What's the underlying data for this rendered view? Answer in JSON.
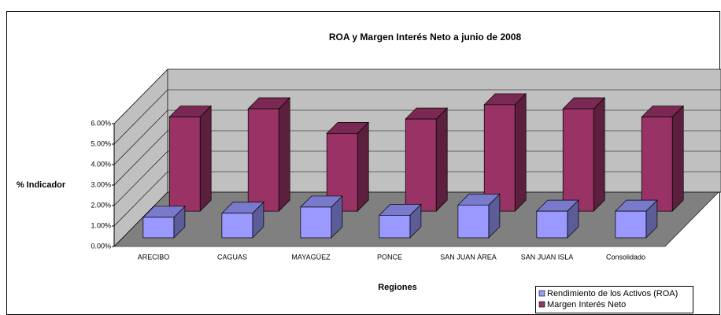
{
  "chart_data": {
    "type": "bar3d",
    "title": "ROA y Margen Interés Neto a junio de 2008",
    "x_label": "Regiones",
    "y_label": "% Indicador",
    "categories": [
      "ARECIBO",
      "CAGUAS",
      "MAYAGÜEZ",
      "PONCE",
      "SAN JUAN ÁREA",
      "SAN JUAN ISLA",
      "Consolidado"
    ],
    "series": [
      {
        "name": "Rendimiento de los Activos (ROA)",
        "color": "#9999ff",
        "values": [
          1.0,
          1.2,
          1.5,
          1.1,
          1.6,
          1.3,
          1.3
        ]
      },
      {
        "name": "Margen Interés Neto",
        "color": "#993366",
        "values": [
          4.6,
          5.0,
          3.8,
          4.5,
          5.2,
          5.0,
          4.6
        ]
      }
    ],
    "ylim": [
      0,
      6
    ],
    "yticks": [
      {
        "value": 0,
        "label": "0.00%"
      },
      {
        "value": 1,
        "label": "1.00%"
      },
      {
        "value": 2,
        "label": "2.00%"
      },
      {
        "value": 3,
        "label": "3.00%"
      },
      {
        "value": 4,
        "label": "4.00%"
      },
      {
        "value": 5,
        "label": "5.00%"
      },
      {
        "value": 6,
        "label": "6.00%"
      }
    ],
    "grid": true
  }
}
